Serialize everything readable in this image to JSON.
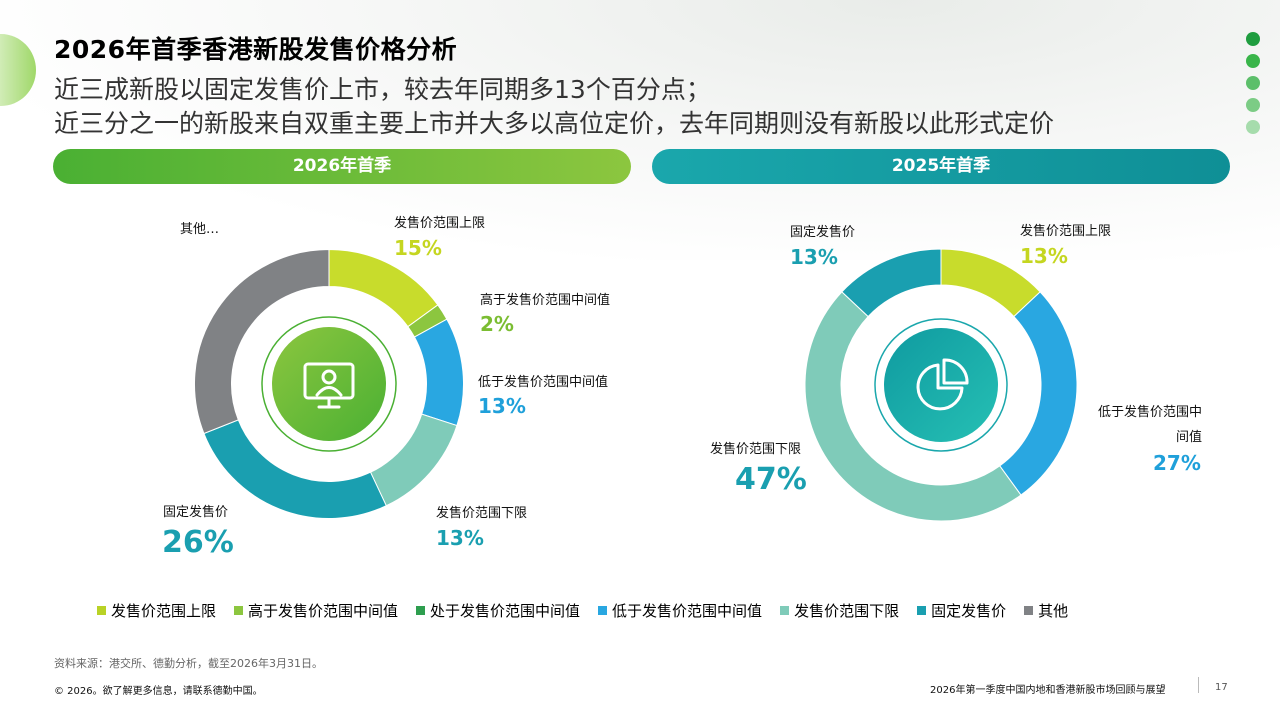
{
  "header": {
    "title": "2026年首季香港新股发售价格分析",
    "subtitle_line1": "近三成新股以固定发售价上市，较去年同期多13个百分点；",
    "subtitle_line2": "近三分之一的新股来自双重主要上市并大多以高位定价，去年同期则没有新股以此形式定价"
  },
  "chart_data": [
    {
      "type": "pie",
      "title": "2026年首季",
      "icon": "monitor-person-icon",
      "slices": [
        {
          "name": "发售价范围上限",
          "value": 15,
          "label": "15%",
          "color": "#c8dc2c"
        },
        {
          "name": "高于发售价范围中间值",
          "value": 2,
          "label": "2%",
          "color": "#8cc63f"
        },
        {
          "name": "低于发售价范围中间值",
          "value": 13,
          "label": "13%",
          "color": "#29a7e1"
        },
        {
          "name": "发售价范围下限",
          "value": 13,
          "label": "13%",
          "color": "#7fcbb9"
        },
        {
          "name": "固定发售价",
          "value": 26,
          "label": "26%",
          "color": "#1a9fb0"
        },
        {
          "name": "其他",
          "value": 31,
          "label": "其他…",
          "color": "#808285"
        }
      ]
    },
    {
      "type": "pie",
      "title": "2025年首季",
      "icon": "pie-chart-icon",
      "slices": [
        {
          "name": "发售价范围上限",
          "value": 13,
          "label": "13%",
          "color": "#c8dc2c"
        },
        {
          "name": "低于发售价范围中间值",
          "value": 27,
          "label": "27%",
          "color": "#29a7e1"
        },
        {
          "name": "发售价范围下限",
          "value": 47,
          "label": "47%",
          "color": "#7fcbb9"
        },
        {
          "name": "固定发售价",
          "value": 13,
          "label": "13%",
          "color": "#1a9fb0"
        }
      ]
    }
  ],
  "legend": [
    {
      "name": "发售价范围上限",
      "color": "#b9d226"
    },
    {
      "name": "高于发售价范围中间值",
      "color": "#8cc63f"
    },
    {
      "name": "处于发售价范围中间值",
      "color": "#2e9e4f"
    },
    {
      "name": "低于发售价范围中间值",
      "color": "#29a7e1"
    },
    {
      "name": "发售价范围下限",
      "color": "#7fcbb9"
    },
    {
      "name": "固定发售价",
      "color": "#1a9fb0"
    },
    {
      "name": "其他",
      "color": "#808285"
    }
  ],
  "footer": {
    "source": "资料来源：港交所、德勤分析，截至2026年3月31日。",
    "copyright": "© 2026。欲了解更多信息，请联系德勤中国。",
    "report_title": "2026年第一季度中国内地和香港新股市场回顾与展望",
    "page_number": "17"
  },
  "decor": {
    "dot_colors": [
      "#1f9d3f",
      "#39b54a",
      "#5cbf6a",
      "#7ccc85",
      "#a6dcac"
    ]
  }
}
